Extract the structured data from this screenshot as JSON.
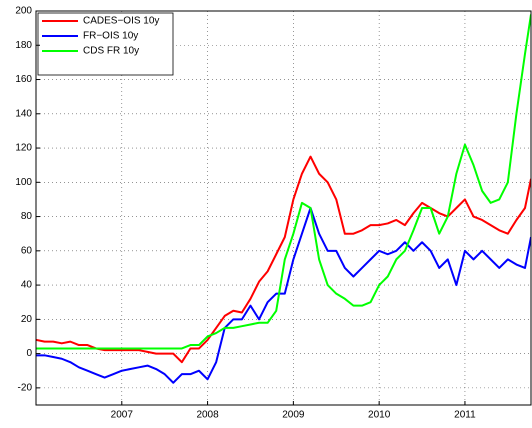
{
  "chart_data": {
    "type": "line",
    "x": [
      2006.0,
      2006.1,
      2006.2,
      2006.3,
      2006.4,
      2006.5,
      2006.6,
      2006.7,
      2006.8,
      2006.9,
      2007.0,
      2007.1,
      2007.2,
      2007.3,
      2007.4,
      2007.5,
      2007.6,
      2007.7,
      2007.8,
      2007.9,
      2008.0,
      2008.1,
      2008.2,
      2008.3,
      2008.4,
      2008.5,
      2008.6,
      2008.7,
      2008.8,
      2008.9,
      2009.0,
      2009.1,
      2009.2,
      2009.3,
      2009.4,
      2009.5,
      2009.6,
      2009.7,
      2009.8,
      2009.9,
      2010.0,
      2010.1,
      2010.2,
      2010.3,
      2010.4,
      2010.5,
      2010.6,
      2010.7,
      2010.8,
      2010.9,
      2011.0,
      2011.1,
      2011.2,
      2011.3,
      2011.4,
      2011.5,
      2011.6,
      2011.7,
      2011.77
    ],
    "series": [
      {
        "name": "CADES−OIS 10y",
        "color": "#ff0000",
        "values": [
          8,
          7,
          7,
          6,
          7,
          5,
          5,
          3,
          2,
          2,
          2,
          2,
          2,
          1,
          0,
          0,
          0,
          -5,
          3,
          3,
          8,
          15,
          22,
          25,
          24,
          32,
          42,
          48,
          58,
          68,
          90,
          105,
          115,
          105,
          100,
          90,
          70,
          70,
          72,
          75,
          75,
          76,
          78,
          75,
          82,
          88,
          85,
          82,
          80,
          85,
          90,
          80,
          78,
          75,
          72,
          70,
          78,
          85,
          102
        ]
      },
      {
        "name": "FR−OIS 10y",
        "color": "#0000ff",
        "values": [
          -1,
          -1,
          -2,
          -3,
          -5,
          -8,
          -10,
          -12,
          -14,
          -12,
          -10,
          -9,
          -8,
          -7,
          -9,
          -12,
          -17,
          -12,
          -12,
          -10,
          -15,
          -5,
          15,
          20,
          20,
          28,
          20,
          30,
          35,
          35,
          55,
          70,
          85,
          70,
          60,
          60,
          50,
          45,
          50,
          55,
          60,
          58,
          60,
          65,
          60,
          65,
          60,
          50,
          55,
          40,
          60,
          55,
          60,
          55,
          50,
          55,
          52,
          50,
          68
        ]
      },
      {
        "name": "CDS FR 10y",
        "color": "#00ff00",
        "values": [
          3,
          3,
          3,
          3,
          3,
          3,
          3,
          3,
          3,
          3,
          3,
          3,
          3,
          3,
          3,
          3,
          3,
          3,
          5,
          5,
          10,
          12,
          15,
          15,
          16,
          17,
          18,
          18,
          25,
          55,
          70,
          88,
          85,
          55,
          40,
          35,
          32,
          28,
          28,
          30,
          40,
          45,
          55,
          60,
          72,
          85,
          85,
          70,
          80,
          105,
          122,
          110,
          95,
          88,
          90,
          100,
          140,
          175,
          198
        ]
      }
    ],
    "xlim": [
      2006.0,
      2011.77
    ],
    "xticks": [
      2007,
      2008,
      2009,
      2010,
      2011
    ],
    "ylim": [
      -30,
      200
    ],
    "yticks": [
      -20,
      0,
      20,
      40,
      60,
      80,
      100,
      120,
      140,
      160,
      180,
      200
    ],
    "grid": true,
    "legend": "upper-left"
  }
}
